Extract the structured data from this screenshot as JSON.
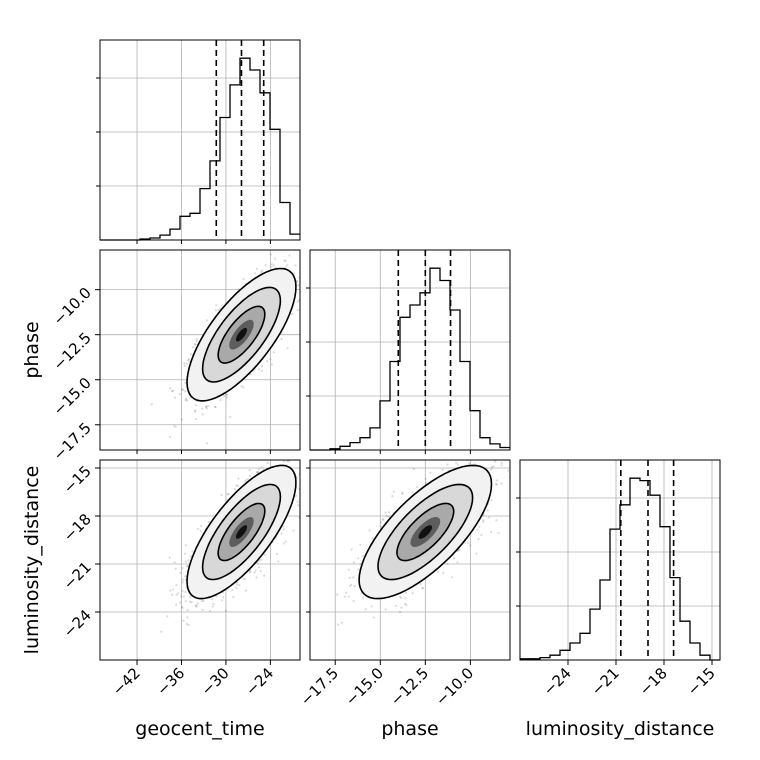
{
  "chart_data": {
    "type": "corner",
    "parameters": [
      "geocent_time",
      "phase",
      "luminosity_distance"
    ],
    "ranges": {
      "geocent_time": [
        -47,
        -20
      ],
      "phase": [
        -18.9,
        -7.8
      ],
      "luminosity_distance": [
        -27,
        -14.5
      ]
    },
    "ticks": {
      "geocent_time": [
        -42,
        -36,
        -30,
        -24
      ],
      "phase": [
        -17.5,
        -15.0,
        -12.5,
        -10.0
      ],
      "luminosity_distance": [
        -24,
        -21,
        -18,
        -15
      ]
    },
    "tick_labels": {
      "geocent_time": [
        "−42",
        "−36",
        "−30",
        "−24"
      ],
      "phase": [
        "−17.5",
        "−15.0",
        "−12.5",
        "−10.0"
      ],
      "luminosity_distance": [
        "−24",
        "−21",
        "−18",
        "−15"
      ]
    },
    "quantiles": {
      "geocent_time": [
        -31.3,
        -27.9,
        -24.9
      ],
      "phase": [
        -14.0,
        -12.5,
        -11.1
      ],
      "luminosity_distance": [
        -20.7,
        -19.0,
        -17.4
      ]
    },
    "histograms": {
      "geocent_time": {
        "edges": [
          -47,
          -45.65,
          -44.3,
          -42.95,
          -41.6,
          -40.25,
          -38.9,
          -37.55,
          -36.2,
          -34.85,
          -33.5,
          -32.15,
          -30.8,
          -29.45,
          -28.1,
          -26.75,
          -25.4,
          -24.05,
          -22.7,
          -21.35,
          -20
        ],
        "counts": [
          0,
          0,
          0,
          0,
          0.5,
          1,
          2.5,
          5.5,
          12,
          13.5,
          26,
          40,
          62,
          78.5,
          92,
          86,
          74.5,
          56,
          19,
          3
        ]
      },
      "phase": {
        "edges": [
          -18.9,
          -18.345,
          -17.79,
          -17.235,
          -16.68,
          -16.125,
          -15.57,
          -15.015,
          -14.46,
          -13.905,
          -13.35,
          -12.795,
          -12.24,
          -11.685,
          -11.13,
          -10.575,
          -10.02,
          -9.465,
          -8.91,
          -8.355,
          -7.8
        ],
        "counts": [
          0,
          0,
          0.5,
          1.5,
          3,
          5,
          9,
          20,
          36,
          54,
          59,
          64,
          74,
          69,
          57,
          36,
          16,
          5,
          2.5,
          1
        ]
      },
      "luminosity_distance": {
        "edges": [
          -27,
          -26.375,
          -25.75,
          -25.125,
          -24.5,
          -23.875,
          -23.25,
          -22.625,
          -22,
          -21.375,
          -20.75,
          -20.125,
          -19.5,
          -18.875,
          -18.25,
          -17.625,
          -17,
          -16.375,
          -15.75,
          -15.125,
          -14.5
        ],
        "counts": [
          0.5,
          0.5,
          1,
          2,
          4,
          7,
          11,
          21,
          33,
          54,
          64,
          75,
          74,
          68,
          55,
          34,
          16,
          7,
          2,
          0
        ]
      }
    },
    "correlations": {
      "phase_vs_geocent_time": {
        "rho": 0.72,
        "mean": [
          -27.9,
          -12.5
        ],
        "sd": [
          3.0,
          1.5
        ]
      },
      "luminosity_distance_vs_geocent_time": {
        "rho": 0.74,
        "mean": [
          -27.9,
          -19.0
        ],
        "sd": [
          3.0,
          1.7
        ]
      },
      "luminosity_distance_vs_phase": {
        "rho": 0.72,
        "mean": [
          -12.5,
          -19.0
        ],
        "sd": [
          1.5,
          1.7
        ]
      }
    },
    "grid": true
  }
}
